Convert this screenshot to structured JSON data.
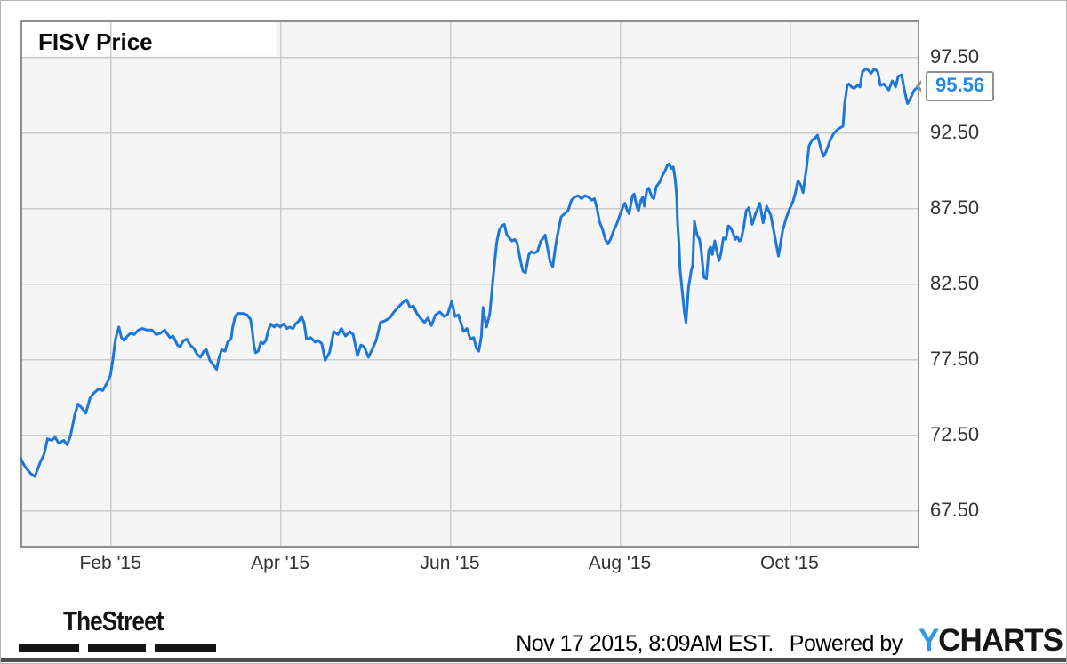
{
  "page": {
    "title": "FISV Price",
    "callout_value": "95.56",
    "footer": {
      "brand": "TheStreet",
      "timestamp": "Nov 17 2015, 8:09AM EST.",
      "powered_by": "Powered by",
      "provider_first_letter": "Y",
      "provider_rest": "CHARTS"
    }
  },
  "colors": {
    "line_blue": "#1f76d9",
    "callout_text_blue": "#1e87e8",
    "plot_background": "#f5f5f5",
    "gridline": "#cccccc",
    "plot_border": "#8f8f8f",
    "tick_text": "#333333",
    "ycharts_y_blue": "#2f97ea",
    "footer_bar": "#4d4d4d"
  },
  "chart_data": {
    "type": "line",
    "title": "FISV Price",
    "ticker": "FISV",
    "series_name": "FISV share price (USD)",
    "last_value": 95.56,
    "last_value_label": "95.56",
    "x_unit": "months since 2015-01-01",
    "xlim": [
      -0.06,
      10.53
    ],
    "ylim": [
      65.0,
      99.9
    ],
    "grid": true,
    "legend": "none",
    "x_ticks": [
      {
        "t": 1,
        "label": "Feb '15"
      },
      {
        "t": 3,
        "label": "Apr '15"
      },
      {
        "t": 5,
        "label": "Jun '15"
      },
      {
        "t": 7,
        "label": "Aug '15"
      },
      {
        "t": 9,
        "label": "Oct '15"
      }
    ],
    "y_ticks": [
      {
        "v": 97.5,
        "label": "97.50"
      },
      {
        "v": 92.5,
        "label": "92.50"
      },
      {
        "v": 87.5,
        "label": "87.50"
      },
      {
        "v": 82.5,
        "label": "82.50"
      },
      {
        "v": 77.5,
        "label": "77.50"
      },
      {
        "v": 72.5,
        "label": "72.50"
      },
      {
        "v": 67.5,
        "label": "67.50"
      }
    ],
    "points": [
      [
        -0.06,
        70.9
      ],
      [
        0,
        70.3
      ],
      [
        0.06,
        69.9
      ],
      [
        0.11,
        69.7
      ],
      [
        0.17,
        70.6
      ],
      [
        0.22,
        71.2
      ],
      [
        0.26,
        72.2
      ],
      [
        0.31,
        72.1
      ],
      [
        0.35,
        72.3
      ],
      [
        0.39,
        71.9
      ],
      [
        0.45,
        72.1
      ],
      [
        0.49,
        71.8
      ],
      [
        0.53,
        72.4
      ],
      [
        0.58,
        73.8
      ],
      [
        0.62,
        74.5
      ],
      [
        0.67,
        74.2
      ],
      [
        0.71,
        73.9
      ],
      [
        0.76,
        74.9
      ],
      [
        0.8,
        75.2
      ],
      [
        0.86,
        75.5
      ],
      [
        0.91,
        75.4
      ],
      [
        0.96,
        75.9
      ],
      [
        1,
        76.4
      ],
      [
        1.03,
        77.5
      ],
      [
        1.06,
        78.8
      ],
      [
        1.1,
        79.6
      ],
      [
        1.13,
        78.9
      ],
      [
        1.16,
        78.7
      ],
      [
        1.2,
        79
      ],
      [
        1.24,
        79.2
      ],
      [
        1.28,
        79.1
      ],
      [
        1.33,
        79.4
      ],
      [
        1.38,
        79.5
      ],
      [
        1.43,
        79.4
      ],
      [
        1.49,
        79.4
      ],
      [
        1.54,
        79.1
      ],
      [
        1.59,
        79.2
      ],
      [
        1.64,
        79.4
      ],
      [
        1.7,
        78.9
      ],
      [
        1.74,
        79
      ],
      [
        1.79,
        78.4
      ],
      [
        1.82,
        78.3
      ],
      [
        1.86,
        78.7
      ],
      [
        1.9,
        78.8
      ],
      [
        1.94,
        78.4
      ],
      [
        1.98,
        78.2
      ],
      [
        2.02,
        77.8
      ],
      [
        2.06,
        77.6
      ],
      [
        2.1,
        78
      ],
      [
        2.13,
        78.1
      ],
      [
        2.17,
        77.4
      ],
      [
        2.21,
        77.1
      ],
      [
        2.25,
        76.8
      ],
      [
        2.28,
        77.6
      ],
      [
        2.31,
        78.1
      ],
      [
        2.35,
        78
      ],
      [
        2.38,
        78.6
      ],
      [
        2.42,
        78.8
      ],
      [
        2.44,
        79.6
      ],
      [
        2.47,
        80.3
      ],
      [
        2.5,
        80.5
      ],
      [
        2.56,
        80.5
      ],
      [
        2.61,
        80.4
      ],
      [
        2.65,
        80.1
      ],
      [
        2.67,
        79.4
      ],
      [
        2.69,
        78.4
      ],
      [
        2.71,
        77.9
      ],
      [
        2.74,
        78
      ],
      [
        2.77,
        78.6
      ],
      [
        2.8,
        78.5
      ],
      [
        2.83,
        78.7
      ],
      [
        2.86,
        79.4
      ],
      [
        2.89,
        79.8
      ],
      [
        2.93,
        79.6
      ],
      [
        2.96,
        79.8
      ],
      [
        3,
        79.6
      ],
      [
        3.04,
        79.8
      ],
      [
        3.08,
        79.5
      ],
      [
        3.11,
        79.6
      ],
      [
        3.15,
        79.5
      ],
      [
        3.18,
        79.8
      ],
      [
        3.22,
        80
      ],
      [
        3.25,
        80.3
      ],
      [
        3.28,
        79.9
      ],
      [
        3.31,
        78.8
      ],
      [
        3.36,
        78.9
      ],
      [
        3.41,
        78.6
      ],
      [
        3.45,
        78.7
      ],
      [
        3.49,
        78.5
      ],
      [
        3.53,
        77.4
      ],
      [
        3.58,
        77.9
      ],
      [
        3.63,
        79.3
      ],
      [
        3.68,
        79.1
      ],
      [
        3.72,
        79.5
      ],
      [
        3.77,
        79
      ],
      [
        3.82,
        79.3
      ],
      [
        3.86,
        79.1
      ],
      [
        3.91,
        77.7
      ],
      [
        3.95,
        78.4
      ],
      [
        3.99,
        78.3
      ],
      [
        4.04,
        77.6
      ],
      [
        4.09,
        78.2
      ],
      [
        4.13,
        78.7
      ],
      [
        4.18,
        79.9
      ],
      [
        4.23,
        80
      ],
      [
        4.29,
        80.2
      ],
      [
        4.34,
        80.6
      ],
      [
        4.39,
        80.9
      ],
      [
        4.44,
        81.2
      ],
      [
        4.49,
        81.4
      ],
      [
        4.53,
        80.9
      ],
      [
        4.57,
        81
      ],
      [
        4.61,
        80.5
      ],
      [
        4.65,
        80.2
      ],
      [
        4.7,
        79.9
      ],
      [
        4.74,
        80.2
      ],
      [
        4.78,
        79.7
      ],
      [
        4.83,
        80.4
      ],
      [
        4.88,
        80.6
      ],
      [
        4.93,
        80.3
      ],
      [
        4.97,
        80.4
      ],
      [
        5.02,
        81.3
      ],
      [
        5.06,
        80.3
      ],
      [
        5.1,
        80.4
      ],
      [
        5.16,
        79.3
      ],
      [
        5.2,
        79.5
      ],
      [
        5.24,
        78.8
      ],
      [
        5.28,
        78.9
      ],
      [
        5.31,
        78.2
      ],
      [
        5.34,
        78
      ],
      [
        5.37,
        79
      ],
      [
        5.39,
        80.9
      ],
      [
        5.41,
        80.2
      ],
      [
        5.43,
        79.6
      ],
      [
        5.47,
        80.5
      ],
      [
        5.51,
        83
      ],
      [
        5.55,
        85.2
      ],
      [
        5.58,
        86
      ],
      [
        5.61,
        86.3
      ],
      [
        5.64,
        86.4
      ],
      [
        5.67,
        85.7
      ],
      [
        5.7,
        85.5
      ],
      [
        5.73,
        85.3
      ],
      [
        5.76,
        85.4
      ],
      [
        5.79,
        85.2
      ],
      [
        5.83,
        84
      ],
      [
        5.86,
        83.3
      ],
      [
        5.89,
        83.2
      ],
      [
        5.93,
        84.4
      ],
      [
        5.96,
        84.6
      ],
      [
        5.99,
        84.5
      ],
      [
        6.03,
        84.6
      ],
      [
        6.07,
        85.3
      ],
      [
        6.1,
        85.5
      ],
      [
        6.12,
        85.7
      ],
      [
        6.15,
        84.8
      ],
      [
        6.18,
        83.9
      ],
      [
        6.21,
        83.6
      ],
      [
        6.25,
        85.2
      ],
      [
        6.28,
        86.1
      ],
      [
        6.31,
        86.9
      ],
      [
        6.35,
        87.1
      ],
      [
        6.39,
        87.3
      ],
      [
        6.43,
        88
      ],
      [
        6.47,
        88.2
      ],
      [
        6.51,
        88.3
      ],
      [
        6.55,
        88.1
      ],
      [
        6.59,
        88.3
      ],
      [
        6.63,
        88.2
      ],
      [
        6.67,
        88
      ],
      [
        6.7,
        88.1
      ],
      [
        6.73,
        87.5
      ],
      [
        6.76,
        86.6
      ],
      [
        6.8,
        86
      ],
      [
        6.83,
        85.4
      ],
      [
        6.86,
        85.1
      ],
      [
        6.89,
        85.4
      ],
      [
        6.93,
        86
      ],
      [
        6.97,
        86.5
      ],
      [
        7,
        87
      ],
      [
        7.04,
        87.6
      ],
      [
        7.06,
        87.8
      ],
      [
        7.09,
        87.3
      ],
      [
        7.11,
        87.1
      ],
      [
        7.15,
        88.3
      ],
      [
        7.17,
        88.4
      ],
      [
        7.2,
        87.6
      ],
      [
        7.22,
        87.3
      ],
      [
        7.25,
        88
      ],
      [
        7.27,
        88.2
      ],
      [
        7.29,
        87.6
      ],
      [
        7.32,
        88.7
      ],
      [
        7.34,
        88.8
      ],
      [
        7.38,
        88.2
      ],
      [
        7.4,
        88.1
      ],
      [
        7.43,
        88.9
      ],
      [
        7.47,
        89.2
      ],
      [
        7.5,
        89.6
      ],
      [
        7.53,
        89.9
      ],
      [
        7.56,
        90.3
      ],
      [
        7.58,
        90.4
      ],
      [
        7.61,
        90.1
      ],
      [
        7.63,
        90.2
      ],
      [
        7.65,
        89.5
      ],
      [
        7.67,
        88.3
      ],
      [
        7.68,
        86.6
      ],
      [
        7.7,
        84.9
      ],
      [
        7.71,
        83.4
      ],
      [
        7.73,
        82.3
      ],
      [
        7.75,
        81.2
      ],
      [
        7.76,
        80.6
      ],
      [
        7.78,
        79.9
      ],
      [
        7.81,
        82.2
      ],
      [
        7.83,
        82.9
      ],
      [
        7.84,
        83.3
      ],
      [
        7.86,
        83.7
      ],
      [
        7.88,
        86.6
      ],
      [
        7.91,
        85.7
      ],
      [
        7.94,
        85.4
      ],
      [
        7.96,
        84.7
      ],
      [
        7.99,
        82.9
      ],
      [
        8.02,
        82.8
      ],
      [
        8.05,
        84.7
      ],
      [
        8.07,
        84.9
      ],
      [
        8.09,
        84.4
      ],
      [
        8.12,
        85.3
      ],
      [
        8.14,
        84.7
      ],
      [
        8.17,
        84
      ],
      [
        8.19,
        84.4
      ],
      [
        8.22,
        85.5
      ],
      [
        8.25,
        85.4
      ],
      [
        8.28,
        86.3
      ],
      [
        8.3,
        86.2
      ],
      [
        8.33,
        85.9
      ],
      [
        8.36,
        85.4
      ],
      [
        8.38,
        85.6
      ],
      [
        8.41,
        85.3
      ],
      [
        8.43,
        85.4
      ],
      [
        8.46,
        86.2
      ],
      [
        8.49,
        87.3
      ],
      [
        8.52,
        87.5
      ],
      [
        8.56,
        86.4
      ],
      [
        8.6,
        87.1
      ],
      [
        8.65,
        87.8
      ],
      [
        8.69,
        86.5
      ],
      [
        8.73,
        87.6
      ],
      [
        8.78,
        87
      ],
      [
        8.83,
        85.5
      ],
      [
        8.87,
        84.3
      ],
      [
        8.92,
        86
      ],
      [
        8.96,
        86.8
      ],
      [
        9,
        87.4
      ],
      [
        9.04,
        87.9
      ],
      [
        9.07,
        88.5
      ],
      [
        9.1,
        89.3
      ],
      [
        9.14,
        88.9
      ],
      [
        9.16,
        88.5
      ],
      [
        9.2,
        90.1
      ],
      [
        9.23,
        91.6
      ],
      [
        9.27,
        92
      ],
      [
        9.3,
        92.1
      ],
      [
        9.33,
        92.3
      ],
      [
        9.37,
        91.4
      ],
      [
        9.4,
        90.9
      ],
      [
        9.43,
        91.2
      ],
      [
        9.48,
        92
      ],
      [
        9.52,
        92.4
      ],
      [
        9.57,
        92.7
      ],
      [
        9.6,
        92.8
      ],
      [
        9.63,
        92.9
      ],
      [
        9.65,
        94.4
      ],
      [
        9.68,
        95.6
      ],
      [
        9.7,
        95.7
      ],
      [
        9.73,
        95.5
      ],
      [
        9.76,
        95.4
      ],
      [
        9.8,
        95.6
      ],
      [
        9.83,
        95.5
      ],
      [
        9.86,
        96.5
      ],
      [
        9.9,
        96.7
      ],
      [
        9.93,
        96.6
      ],
      [
        9.96,
        96.4
      ],
      [
        10,
        96.7
      ],
      [
        10.04,
        96.5
      ],
      [
        10.07,
        95.6
      ],
      [
        10.11,
        95.7
      ],
      [
        10.14,
        95.5
      ],
      [
        10.17,
        95.3
      ],
      [
        10.21,
        95.9
      ],
      [
        10.25,
        95.5
      ],
      [
        10.28,
        96.2
      ],
      [
        10.32,
        96.3
      ],
      [
        10.36,
        95.1
      ],
      [
        10.39,
        94.4
      ],
      [
        10.42,
        94.7
      ],
      [
        10.47,
        95.3
      ],
      [
        10.53,
        95.56
      ]
    ]
  }
}
